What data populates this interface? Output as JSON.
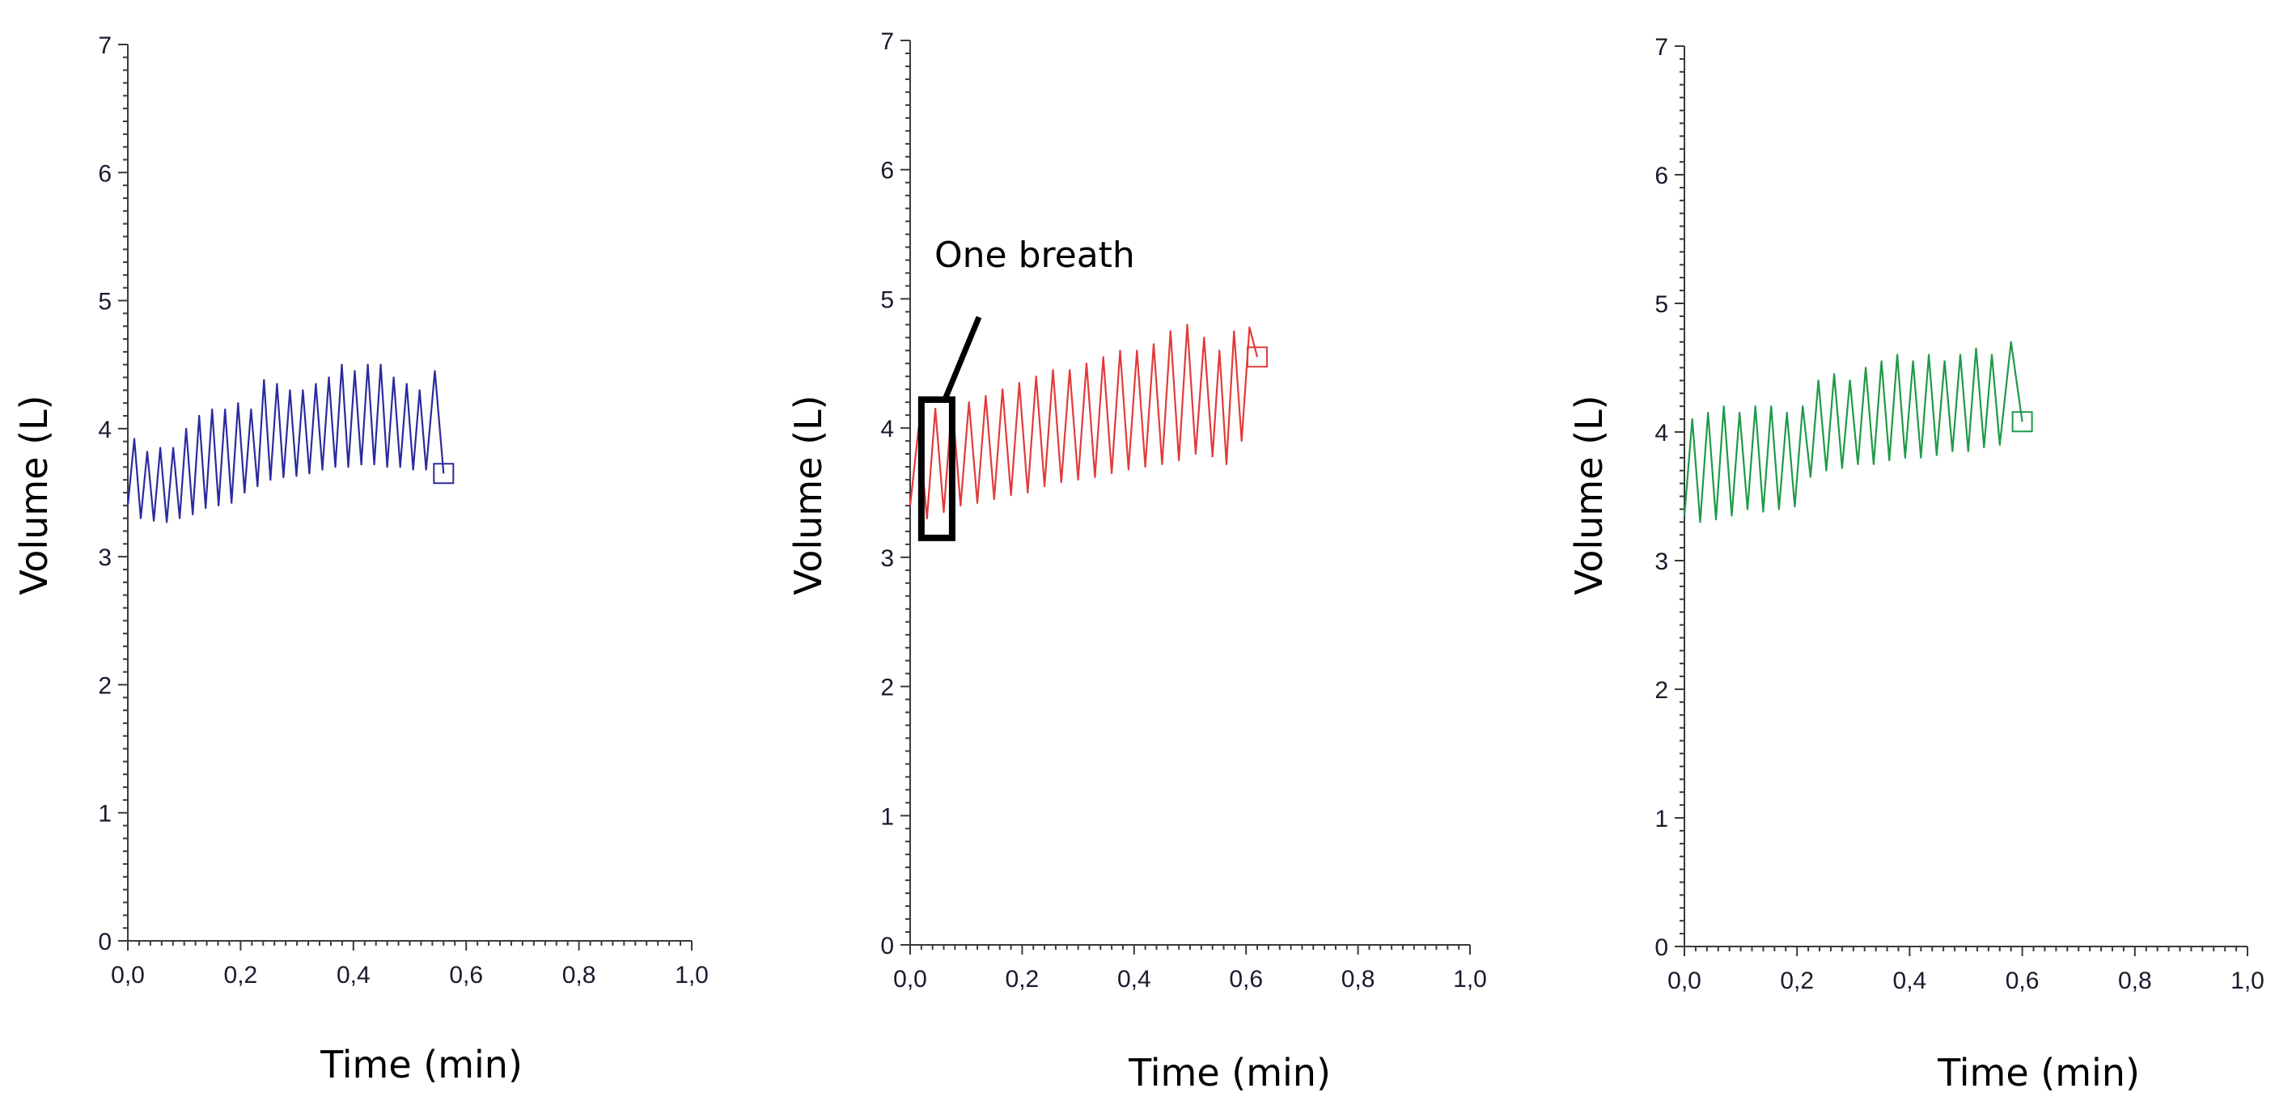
{
  "chart_data": [
    {
      "type": "line",
      "series": [
        {
          "name": "Volume",
          "color": "#2b2b9e"
        }
      ],
      "xlabel": "Time (min)",
      "ylabel": "Volume (L)",
      "xlim": [
        0,
        1.0
      ],
      "ylim": [
        0,
        7
      ],
      "xticks": [
        "0,0",
        "0,2",
        "0,4",
        "0,6",
        "0,8",
        "1,0"
      ],
      "yticks": [
        "0",
        "1",
        "2",
        "3",
        "4",
        "5",
        "6",
        "7"
      ],
      "end_x": 0.56,
      "end_y": 3.65,
      "breaths": [
        {
          "t": 0.0,
          "low": 3.4,
          "high": 3.92
        },
        {
          "t": 0.023,
          "low": 3.3,
          "high": 3.82
        },
        {
          "t": 0.046,
          "low": 3.28,
          "high": 3.85
        },
        {
          "t": 0.069,
          "low": 3.27,
          "high": 3.85
        },
        {
          "t": 0.092,
          "low": 3.3,
          "high": 4.0
        },
        {
          "t": 0.115,
          "low": 3.33,
          "high": 4.1
        },
        {
          "t": 0.138,
          "low": 3.38,
          "high": 4.15
        },
        {
          "t": 0.161,
          "low": 3.4,
          "high": 4.15
        },
        {
          "t": 0.184,
          "low": 3.42,
          "high": 4.2
        },
        {
          "t": 0.207,
          "low": 3.5,
          "high": 4.15
        },
        {
          "t": 0.23,
          "low": 3.55,
          "high": 4.38
        },
        {
          "t": 0.253,
          "low": 3.6,
          "high": 4.35
        },
        {
          "t": 0.276,
          "low": 3.62,
          "high": 4.3
        },
        {
          "t": 0.299,
          "low": 3.63,
          "high": 4.3
        },
        {
          "t": 0.322,
          "low": 3.65,
          "high": 4.35
        },
        {
          "t": 0.345,
          "low": 3.68,
          "high": 4.4
        },
        {
          "t": 0.368,
          "low": 3.7,
          "high": 4.5
        },
        {
          "t": 0.391,
          "low": 3.7,
          "high": 4.45
        },
        {
          "t": 0.414,
          "low": 3.72,
          "high": 4.5
        },
        {
          "t": 0.437,
          "low": 3.72,
          "high": 4.5
        },
        {
          "t": 0.46,
          "low": 3.7,
          "high": 4.4
        },
        {
          "t": 0.483,
          "low": 3.7,
          "high": 4.35
        },
        {
          "t": 0.506,
          "low": 3.68,
          "high": 4.3
        },
        {
          "t": 0.529,
          "low": 3.68,
          "high": 4.45
        }
      ]
    },
    {
      "type": "line",
      "series": [
        {
          "name": "Volume",
          "color": "#e23b3b"
        }
      ],
      "xlabel": "Time (min)",
      "ylabel": "Volume (L)",
      "xlim": [
        0,
        1.0
      ],
      "ylim": [
        0,
        7
      ],
      "xticks": [
        "0,0",
        "0,2",
        "0,4",
        "0,6",
        "0,8",
        "1,0"
      ],
      "yticks": [
        "0",
        "1",
        "2",
        "3",
        "4",
        "5",
        "6",
        "7"
      ],
      "end_x": 0.62,
      "end_y": 4.55,
      "annotation": {
        "text": "One breath",
        "box_x": [
          0.02,
          0.075
        ],
        "box_y": [
          3.15,
          4.22
        ]
      },
      "breaths": [
        {
          "t": 0.0,
          "low": 3.4,
          "high": 4.0
        },
        {
          "t": 0.03,
          "low": 3.3,
          "high": 4.15
        },
        {
          "t": 0.06,
          "low": 3.35,
          "high": 4.2
        },
        {
          "t": 0.09,
          "low": 3.4,
          "high": 4.2
        },
        {
          "t": 0.12,
          "low": 3.42,
          "high": 4.25
        },
        {
          "t": 0.15,
          "low": 3.45,
          "high": 4.3
        },
        {
          "t": 0.18,
          "low": 3.48,
          "high": 4.35
        },
        {
          "t": 0.21,
          "low": 3.5,
          "high": 4.4
        },
        {
          "t": 0.24,
          "low": 3.55,
          "high": 4.45
        },
        {
          "t": 0.27,
          "low": 3.58,
          "high": 4.45
        },
        {
          "t": 0.3,
          "low": 3.6,
          "high": 4.5
        },
        {
          "t": 0.33,
          "low": 3.62,
          "high": 4.55
        },
        {
          "t": 0.36,
          "low": 3.65,
          "high": 4.6
        },
        {
          "t": 0.39,
          "low": 3.68,
          "high": 4.6
        },
        {
          "t": 0.42,
          "low": 3.7,
          "high": 4.65
        },
        {
          "t": 0.45,
          "low": 3.72,
          "high": 4.75
        },
        {
          "t": 0.48,
          "low": 3.75,
          "high": 4.8
        },
        {
          "t": 0.51,
          "low": 3.8,
          "high": 4.7
        },
        {
          "t": 0.54,
          "low": 3.78,
          "high": 4.6
        },
        {
          "t": 0.565,
          "low": 3.72,
          "high": 4.75
        },
        {
          "t": 0.592,
          "low": 3.9,
          "high": 4.78
        }
      ]
    },
    {
      "type": "line",
      "series": [
        {
          "name": "Volume",
          "color": "#1f9a48"
        }
      ],
      "xlabel": "Time (min)",
      "ylabel": "Volume (L)",
      "xlim": [
        0,
        1.0
      ],
      "ylim": [
        0,
        7
      ],
      "xticks": [
        "0,0",
        "0,2",
        "0,4",
        "0,6",
        "0,8",
        "1,0"
      ],
      "yticks": [
        "0",
        "1",
        "2",
        "3",
        "4",
        "5",
        "6",
        "7"
      ],
      "end_x": 0.6,
      "end_y": 4.08,
      "breaths": [
        {
          "t": 0.0,
          "low": 3.35,
          "high": 4.1
        },
        {
          "t": 0.028,
          "low": 3.3,
          "high": 4.15
        },
        {
          "t": 0.056,
          "low": 3.32,
          "high": 4.2
        },
        {
          "t": 0.084,
          "low": 3.35,
          "high": 4.15
        },
        {
          "t": 0.112,
          "low": 3.4,
          "high": 4.2
        },
        {
          "t": 0.14,
          "low": 3.38,
          "high": 4.2
        },
        {
          "t": 0.168,
          "low": 3.4,
          "high": 4.15
        },
        {
          "t": 0.196,
          "low": 3.42,
          "high": 4.2
        },
        {
          "t": 0.224,
          "low": 3.65,
          "high": 4.4
        },
        {
          "t": 0.252,
          "low": 3.7,
          "high": 4.45
        },
        {
          "t": 0.28,
          "low": 3.72,
          "high": 4.4
        },
        {
          "t": 0.308,
          "low": 3.75,
          "high": 4.5
        },
        {
          "t": 0.336,
          "low": 3.75,
          "high": 4.55
        },
        {
          "t": 0.364,
          "low": 3.78,
          "high": 4.6
        },
        {
          "t": 0.392,
          "low": 3.8,
          "high": 4.55
        },
        {
          "t": 0.42,
          "low": 3.8,
          "high": 4.6
        },
        {
          "t": 0.448,
          "low": 3.82,
          "high": 4.55
        },
        {
          "t": 0.476,
          "low": 3.85,
          "high": 4.6
        },
        {
          "t": 0.504,
          "low": 3.85,
          "high": 4.65
        },
        {
          "t": 0.532,
          "low": 3.88,
          "high": 4.6
        },
        {
          "t": 0.56,
          "low": 3.9,
          "high": 4.7
        }
      ]
    }
  ]
}
